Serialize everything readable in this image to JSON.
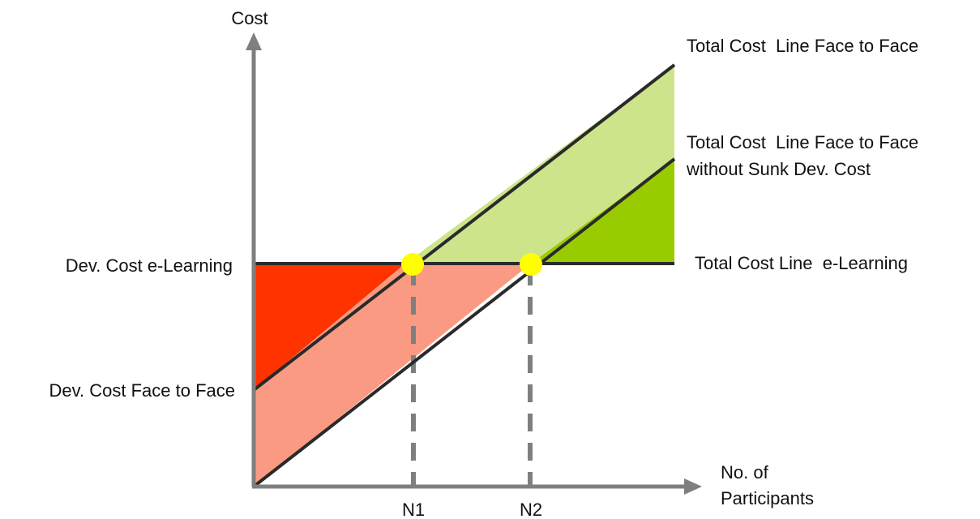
{
  "axes": {
    "y_title": "Cost",
    "x_title_line1": "No. of",
    "x_title_line2": "Participants",
    "x_tick_n1": "N1",
    "x_tick_n2": "N2"
  },
  "labels": {
    "total_cost_face_to_face": "Total Cost  Line Face to Face",
    "total_cost_without_sunk_line1": "Total Cost  Line Face to Face",
    "total_cost_without_sunk_line2": "without Sunk Dev. Cost",
    "total_cost_elearning": "Total Cost Line  e-Learning",
    "dev_cost_elearning": "Dev. Cost e-Learning",
    "dev_cost_face_to_face": "Dev. Cost Face to Face"
  },
  "colors": {
    "axis": "#7f7f7f",
    "line": "#2a2a2a",
    "dark_red": "#ff3300",
    "light_red": "#fa9a82",
    "light_green": "#cde48a",
    "dark_green": "#99cc00",
    "marker": "#ffff00"
  },
  "markers": [
    "breakeven-n1",
    "breakeven-n2"
  ]
}
